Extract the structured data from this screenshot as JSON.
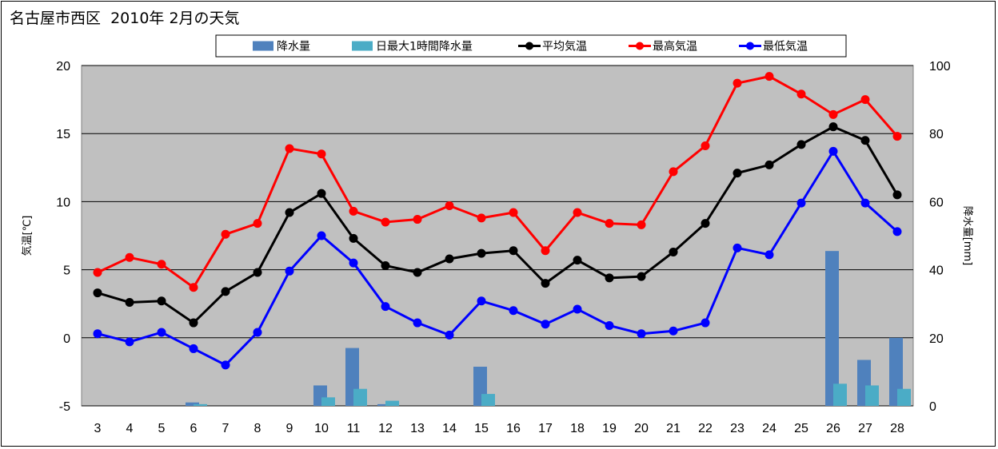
{
  "chart_data": {
    "type": "line",
    "title": "名古屋市西区  2010年 2月の天気",
    "categories": [
      "3",
      "4",
      "5",
      "6",
      "7",
      "8",
      "9",
      "10",
      "11",
      "12",
      "13",
      "14",
      "15",
      "16",
      "17",
      "18",
      "19",
      "20",
      "21",
      "22",
      "23",
      "24",
      "25",
      "26",
      "27",
      "28"
    ],
    "ylabel_left": "気温[℃]",
    "ylabel_right": "降水量[mm]",
    "ylim_left": [
      -5,
      20
    ],
    "ylim_right": [
      0,
      100
    ],
    "yticks_left": [
      "20",
      "15",
      "10",
      "5",
      "0",
      "-5"
    ],
    "yticks_right": [
      "100",
      "80",
      "60",
      "40",
      "20",
      "0"
    ],
    "grid": true,
    "legend_position": "top",
    "series": [
      {
        "name": "降水量",
        "kind": "bar",
        "axis": "right",
        "color": "#4f81bd",
        "values": [
          0,
          0,
          0,
          1,
          0,
          0,
          0,
          6,
          17,
          0.5,
          0,
          0,
          11.5,
          0,
          0,
          0,
          0,
          0,
          0,
          0,
          0,
          0,
          0,
          45.5,
          13.5,
          20
        ]
      },
      {
        "name": "日最大1時間降水量",
        "kind": "bar",
        "axis": "right",
        "color": "#4bacc6",
        "values": [
          0,
          0,
          0,
          0.5,
          0,
          0,
          0,
          2.5,
          5,
          1.5,
          0,
          0,
          3.5,
          0,
          0,
          0,
          0,
          0,
          0,
          0,
          0,
          0,
          0,
          6.5,
          6,
          5
        ]
      },
      {
        "name": "平均気温",
        "kind": "line",
        "axis": "left",
        "color": "#000000",
        "values": [
          3.3,
          2.6,
          2.7,
          1.1,
          3.4,
          4.8,
          9.2,
          10.6,
          7.3,
          5.3,
          4.8,
          5.8,
          6.2,
          6.4,
          4.0,
          5.7,
          4.4,
          4.5,
          6.3,
          8.4,
          12.1,
          12.7,
          14.2,
          15.5,
          14.5,
          10.5
        ]
      },
      {
        "name": "最高気温",
        "kind": "line",
        "axis": "left",
        "color": "#ff0000",
        "values": [
          4.8,
          5.9,
          5.4,
          3.7,
          7.6,
          8.4,
          13.9,
          13.5,
          9.3,
          8.5,
          8.7,
          9.7,
          8.8,
          9.2,
          6.4,
          9.2,
          8.4,
          8.3,
          12.2,
          14.1,
          18.7,
          19.2,
          17.9,
          16.4,
          17.5,
          14.8
        ]
      },
      {
        "name": "最低気温",
        "kind": "line",
        "axis": "left",
        "color": "#0000ff",
        "values": [
          0.3,
          -0.3,
          0.4,
          -0.8,
          -2.0,
          0.4,
          4.9,
          7.5,
          5.5,
          2.3,
          1.1,
          0.2,
          2.7,
          2.0,
          1.0,
          2.1,
          0.9,
          0.3,
          0.5,
          1.1,
          6.6,
          6.1,
          9.9,
          13.7,
          9.9,
          7.8
        ]
      }
    ]
  },
  "colors": {
    "plot_background": "#c0c0c0",
    "gridline": "#000000"
  }
}
